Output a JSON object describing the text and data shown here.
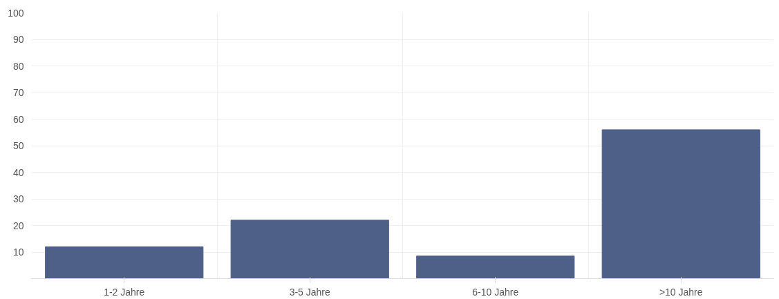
{
  "chart_data": {
    "type": "bar",
    "categories": [
      "1-2 Jahre",
      "3-5 Jahre",
      "6-10 Jahre",
      ">10 Jahre"
    ],
    "values": [
      12,
      22,
      8.5,
      56
    ],
    "color": "#4f6088",
    "ylim": [
      0,
      100
    ],
    "yticks": [
      10,
      20,
      30,
      40,
      50,
      60,
      70,
      80,
      90,
      100
    ],
    "grid": true
  }
}
